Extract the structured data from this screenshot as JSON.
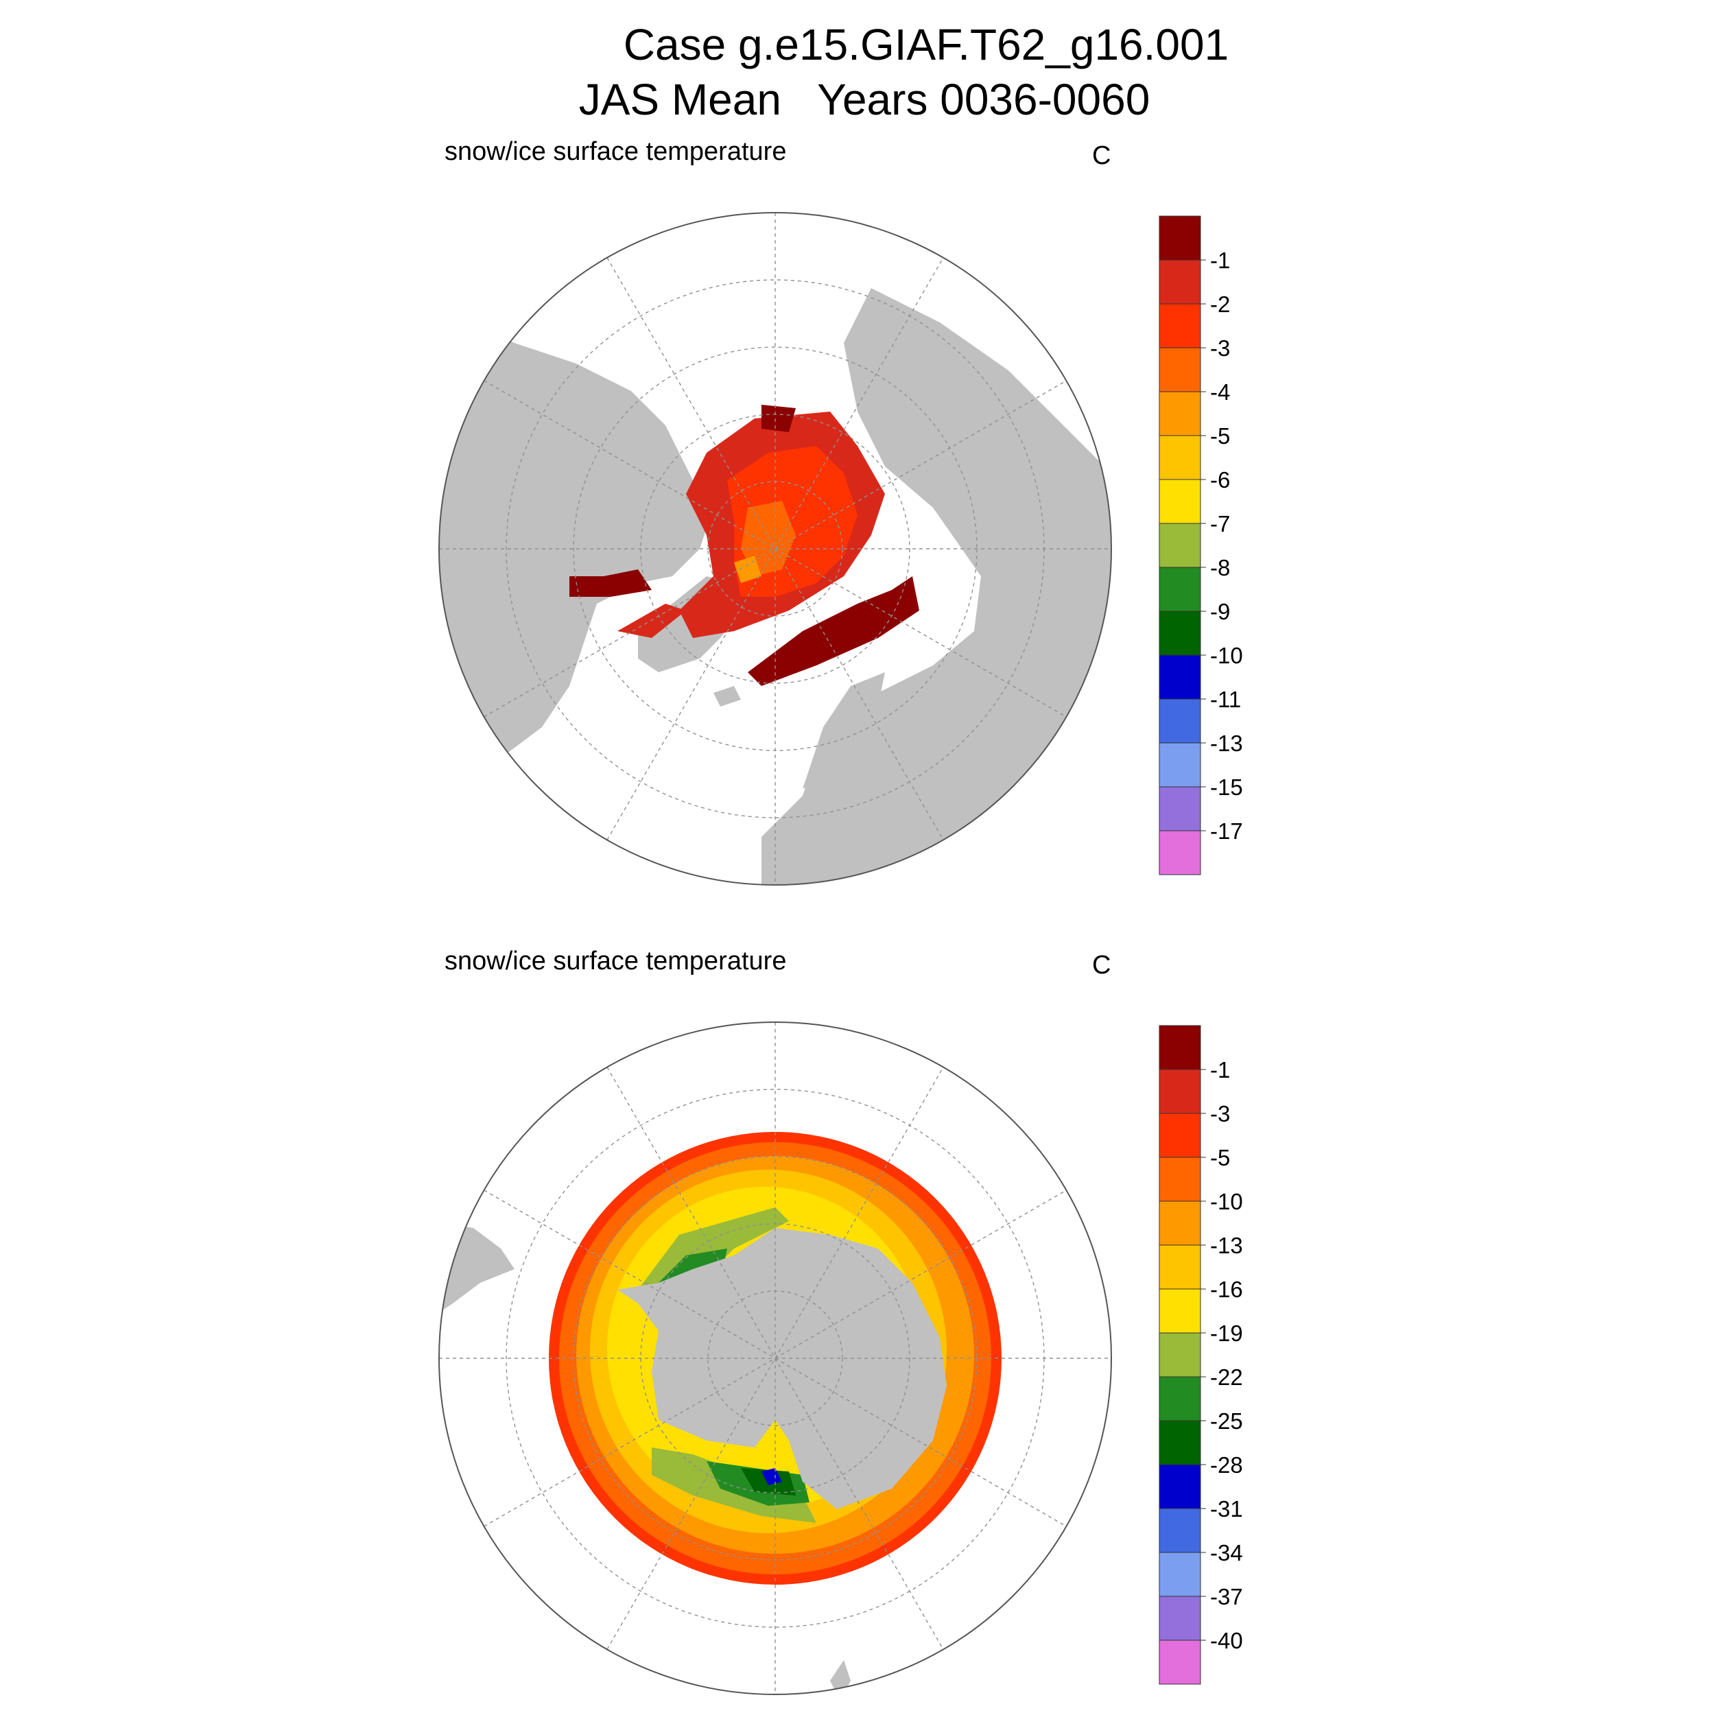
{
  "title": {
    "line1": "Case g.e15.GIAF.T62_g16.001",
    "line2": "JAS Mean   Years 0036-0060"
  },
  "colors": {
    "land": "#c0c0c0",
    "ocean": "#ffffff",
    "grid": "#909090"
  },
  "panels": [
    {
      "id": "north",
      "subtitle": "snow/ice surface temperature",
      "unit": "C",
      "hemisphere": "Northern Hemisphere",
      "colorbar": {
        "labels": [
          "-1",
          "-2",
          "-3",
          "-4",
          "-5",
          "-6",
          "-7",
          "-8",
          "-9",
          "-10",
          "-11",
          "-13",
          "-15",
          "-17"
        ],
        "colors": [
          "#8b0000",
          "#d8281a",
          "#ff3300",
          "#ff6600",
          "#ff9900",
          "#ffc400",
          "#ffe000",
          "#9aba3a",
          "#228b22",
          "#006400",
          "#0000cd",
          "#4169e1",
          "#7b9ef0",
          "#9370db",
          "#e36fdc"
        ]
      }
    },
    {
      "id": "south",
      "subtitle": "snow/ice surface temperature",
      "unit": "C",
      "hemisphere": "Southern Hemisphere",
      "colorbar": {
        "labels": [
          "-1",
          "-3",
          "-5",
          "-10",
          "-13",
          "-16",
          "-19",
          "-22",
          "-25",
          "-28",
          "-31",
          "-34",
          "-37",
          "-40"
        ],
        "colors": [
          "#8b0000",
          "#d8281a",
          "#ff3300",
          "#ff6600",
          "#ff9900",
          "#ffc400",
          "#ffe000",
          "#9aba3a",
          "#228b22",
          "#006400",
          "#0000cd",
          "#4169e1",
          "#7b9ef0",
          "#9370db",
          "#e36fdc"
        ]
      }
    }
  ]
}
